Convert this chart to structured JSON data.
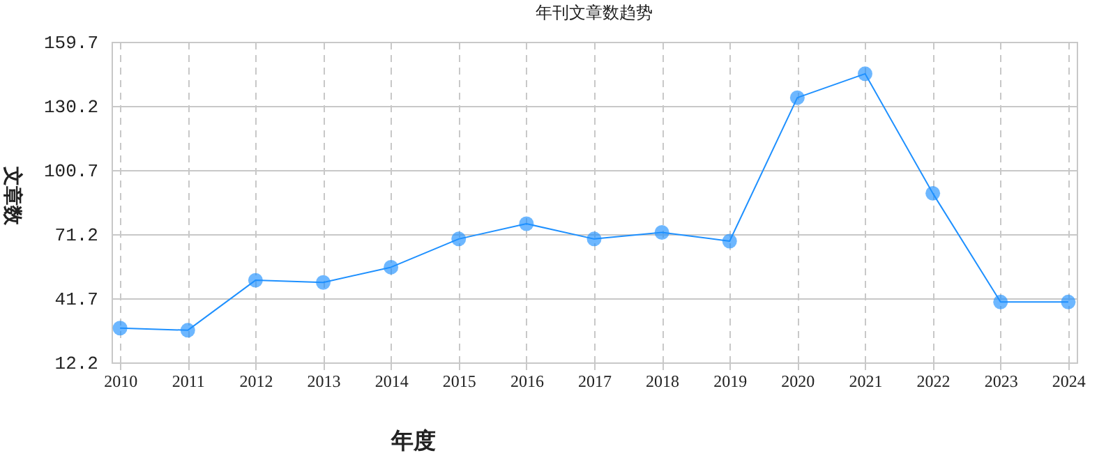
{
  "chart_data": {
    "type": "line",
    "title": "年刊文章数趋势",
    "xlabel": "年度",
    "ylabel": "文章数",
    "categories": [
      "2010",
      "2011",
      "2012",
      "2013",
      "2014",
      "2015",
      "2016",
      "2017",
      "2018",
      "2019",
      "2020",
      "2021",
      "2022",
      "2023",
      "2024"
    ],
    "series": [
      {
        "color": "#1e90ff",
        "values": [
          28,
          27,
          50,
          49,
          56,
          69,
          76,
          69,
          72,
          68,
          134,
          145,
          90,
          40,
          40
        ]
      }
    ],
    "ylim": [
      12.2,
      159.7
    ],
    "yticks": [
      12.2,
      41.7,
      71.2,
      100.7,
      130.2,
      159.7
    ],
    "grid": true,
    "marker": "circle",
    "line_style": "solid"
  }
}
